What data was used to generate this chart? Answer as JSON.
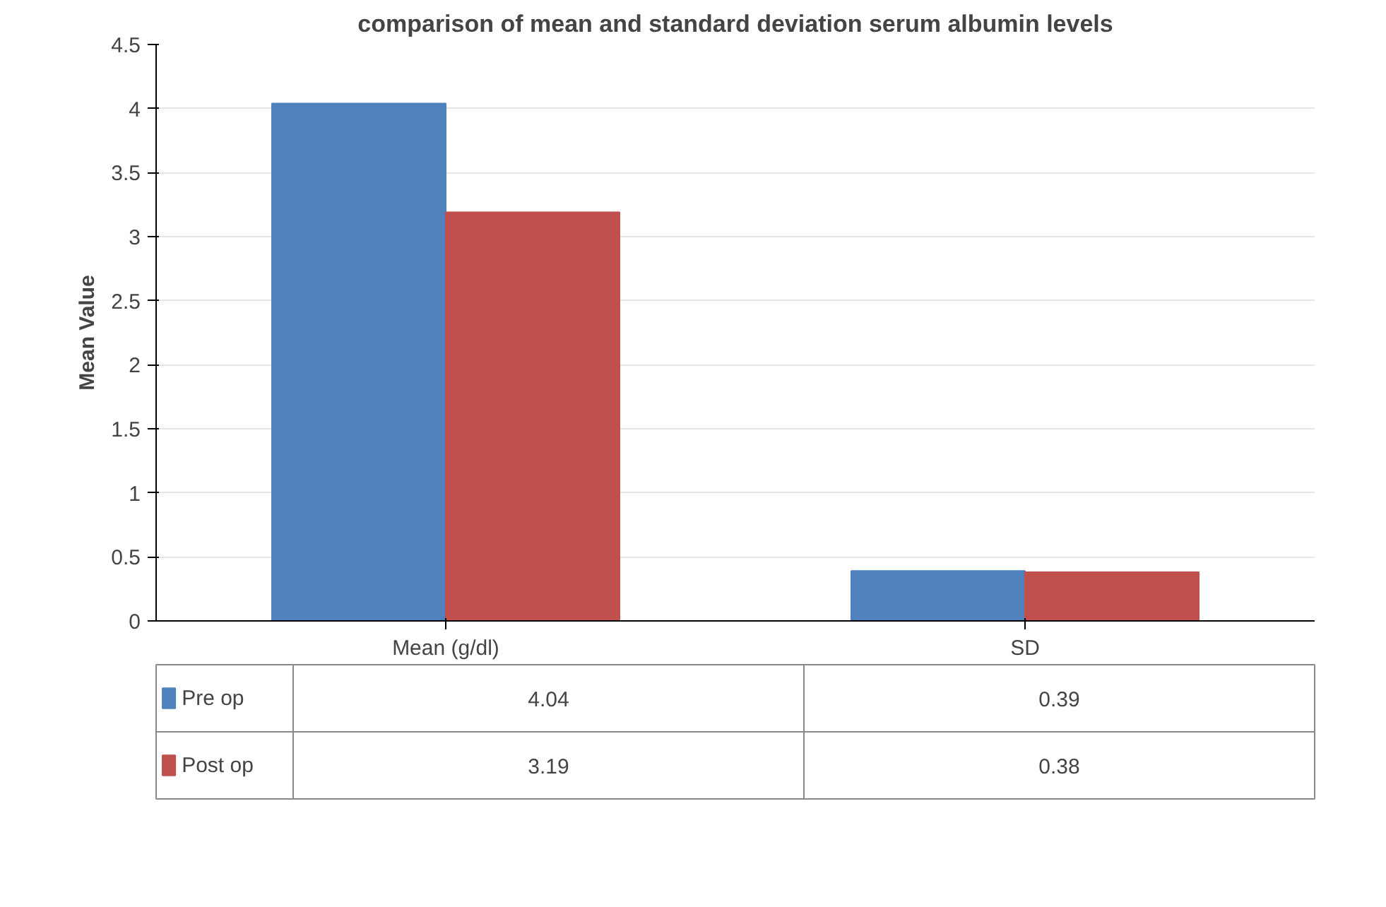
{
  "chart_data": {
    "type": "bar",
    "title": "comparison of mean and standard deviation serum albumin levels",
    "ylabel": "Mean Value",
    "categories": [
      "Mean (g/dl)",
      "SD"
    ],
    "series": [
      {
        "name": "Pre op",
        "color": "#4f81bd",
        "values": [
          4.04,
          0.39
        ]
      },
      {
        "name": "Post op",
        "color": "#c0504d",
        "values": [
          3.19,
          0.38
        ]
      }
    ],
    "ylim": [
      0,
      4.5
    ],
    "yticks": [
      0,
      0.5,
      1,
      1.5,
      2,
      2.5,
      3,
      3.5,
      4,
      4.5
    ],
    "grid": "y",
    "legend": "bottom",
    "data_labels": true
  }
}
